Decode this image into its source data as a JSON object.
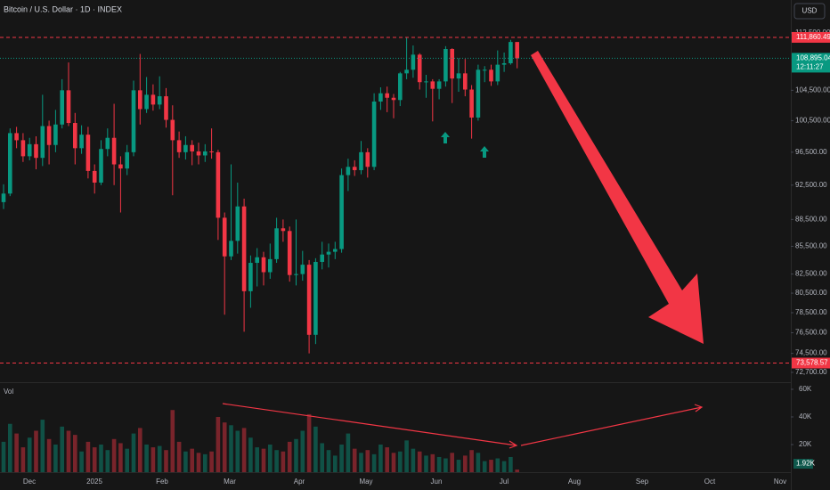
{
  "chart_data": {
    "type": "candlestick",
    "title": "Bitcoin / U.S. Dollar · 1D · INDEX",
    "currency": "USD",
    "vol_title": "Vol",
    "up_color": "#089981",
    "down_color": "#f23645",
    "yscale": "log",
    "ylim": [
      71870,
      117370
    ],
    "yticks": [
      {
        "value": 112500,
        "label": "112,500.00"
      },
      {
        "value": 104500,
        "label": "104,500.00"
      },
      {
        "value": 100500,
        "label": "100,500.00"
      },
      {
        "value": 96500,
        "label": "96,500.00"
      },
      {
        "value": 92500,
        "label": "92,500.00"
      },
      {
        "value": 88500,
        "label": "88,500.00"
      },
      {
        "value": 85500,
        "label": "85,500.00"
      },
      {
        "value": 82500,
        "label": "82,500.00"
      },
      {
        "value": 80500,
        "label": "80,500.00"
      },
      {
        "value": 78500,
        "label": "78,500.00"
      },
      {
        "value": 76500,
        "label": "76,500.00"
      },
      {
        "value": 74500,
        "label": "74,500.00"
      },
      {
        "value": 72700,
        "label": "72,700.00"
      }
    ],
    "x_labels": [
      "Dec",
      "2025",
      "Feb",
      "Mar",
      "Apr",
      "May",
      "Jun",
      "Jul",
      "Aug",
      "Sep",
      "Oct",
      "Nov"
    ],
    "levels": [
      {
        "value": 111860.49,
        "label": "111,860.49",
        "color": "#f23645"
      },
      {
        "value": 73578.57,
        "label": "73,578.57",
        "color": "#f23645"
      }
    ],
    "last_price": {
      "value": 108895.04,
      "label": "108,895.04",
      "countdown": "12:11:27",
      "color": "#089981"
    },
    "open": [
      90500,
      91500,
      98900,
      98000,
      96000,
      97500,
      95800,
      99800,
      97400,
      100000,
      104500,
      100200,
      97000,
      98700,
      94200,
      92800,
      96900,
      98300,
      95000,
      94500,
      96500,
      104500,
      102000,
      103900,
      102600,
      103700,
      100600,
      98000,
      96500,
      97400,
      96600,
      96100,
      96600,
      96500,
      88700,
      84400,
      86100,
      90000,
      80700,
      83700,
      84300,
      82700,
      84100,
      87500,
      87200,
      82400,
      82500,
      83500,
      76300,
      83800,
      84600,
      84900,
      85200,
      93700,
      94700,
      94300,
      96500,
      94700,
      103000,
      104100,
      103500,
      103200,
      106800,
      107300,
      109400,
      105600,
      105700,
      104700,
      105700,
      110200,
      106100,
      106800,
      104600,
      100900,
      107300,
      107300,
      105700,
      108000,
      108200,
      111200
    ],
    "high": [
      92600,
      99500,
      99700,
      98900,
      98300,
      98500,
      103900,
      100500,
      101900,
      106000,
      108300,
      101500,
      99900,
      99700,
      95000,
      98000,
      99500,
      102700,
      96000,
      97400,
      105800,
      109500,
      106300,
      105300,
      106400,
      104800,
      102500,
      99100,
      98500,
      98000,
      97700,
      97500,
      99500,
      96800,
      89300,
      95000,
      92800,
      90900,
      84500,
      85300,
      84900,
      85800,
      88700,
      88500,
      87700,
      88500,
      85000,
      84000,
      84200,
      86000,
      85800,
      86000,
      94500,
      95700,
      95500,
      97900,
      97000,
      104100,
      104900,
      105000,
      104000,
      107000,
      111900,
      110700,
      109600,
      106600,
      106000,
      106000,
      110600,
      110300,
      108900,
      108800,
      105200,
      108000,
      107800,
      108000,
      110000,
      109700,
      111500,
      111000
    ],
    "low": [
      89700,
      91200,
      97000,
      95300,
      95500,
      94400,
      94800,
      95000,
      96500,
      99500,
      99800,
      95000,
      96300,
      93300,
      91500,
      92500,
      96000,
      92500,
      89300,
      93700,
      96000,
      100000,
      101500,
      101800,
      102000,
      99600,
      91300,
      95800,
      95600,
      94900,
      95000,
      95300,
      95700,
      86200,
      78300,
      84000,
      84700,
      76600,
      79000,
      81200,
      81300,
      82000,
      83700,
      86000,
      81700,
      81300,
      81800,
      74500,
      75400,
      83000,
      83200,
      84100,
      84800,
      91800,
      93600,
      93800,
      93400,
      94300,
      101900,
      101600,
      100800,
      102400,
      106000,
      106200,
      104600,
      103500,
      100400,
      103300,
      105000,
      102800,
      104300,
      103700,
      98200,
      100500,
      105600,
      105100,
      105200,
      107000,
      108000,
      107500
    ],
    "close": [
      91500,
      98900,
      98000,
      96000,
      97500,
      95800,
      99800,
      97400,
      100000,
      104500,
      100200,
      97000,
      98700,
      94200,
      92800,
      96900,
      98300,
      95000,
      94500,
      96500,
      104500,
      102000,
      103900,
      102600,
      103700,
      100600,
      98000,
      96500,
      97400,
      96600,
      96100,
      96600,
      96500,
      88700,
      84400,
      86100,
      90000,
      80700,
      83700,
      84300,
      82700,
      84100,
      87500,
      87200,
      82400,
      82500,
      83500,
      76300,
      83800,
      84600,
      84900,
      85200,
      93700,
      94700,
      94300,
      96500,
      94700,
      103000,
      104100,
      103500,
      103200,
      106800,
      107300,
      109400,
      105600,
      105700,
      104700,
      105700,
      110200,
      106100,
      106800,
      104600,
      100900,
      107300,
      107300,
      105700,
      108000,
      108200,
      111200,
      108895.04
    ],
    "volume": [
      22000,
      35000,
      28000,
      18000,
      25000,
      30000,
      38000,
      24000,
      20000,
      33000,
      30000,
      27000,
      15000,
      22000,
      18000,
      20000,
      16000,
      24000,
      21000,
      17000,
      28000,
      32000,
      20000,
      18000,
      19000,
      16000,
      45000,
      22000,
      15000,
      17000,
      14000,
      13000,
      15000,
      40000,
      36000,
      34000,
      30000,
      32000,
      25000,
      18000,
      17000,
      20000,
      16000,
      15000,
      22000,
      24000,
      30000,
      42000,
      33000,
      21000,
      16000,
      12000,
      20000,
      28000,
      17000,
      14000,
      16000,
      13000,
      20000,
      18000,
      14000,
      15000,
      23000,
      17000,
      15000,
      12000,
      13000,
      11000,
      10000,
      14000,
      9000,
      12000,
      16000,
      14000,
      8000,
      9000,
      10000,
      8000,
      11000,
      1920
    ],
    "vol_ylim": [
      0,
      64500
    ],
    "vol_yticks": [
      {
        "value": 60000,
        "label": "60K"
      },
      {
        "value": 40000,
        "label": "40K"
      },
      {
        "value": 20000,
        "label": "20K"
      }
    ],
    "vol_last": {
      "value": 1920,
      "label": "1.92K"
    }
  }
}
